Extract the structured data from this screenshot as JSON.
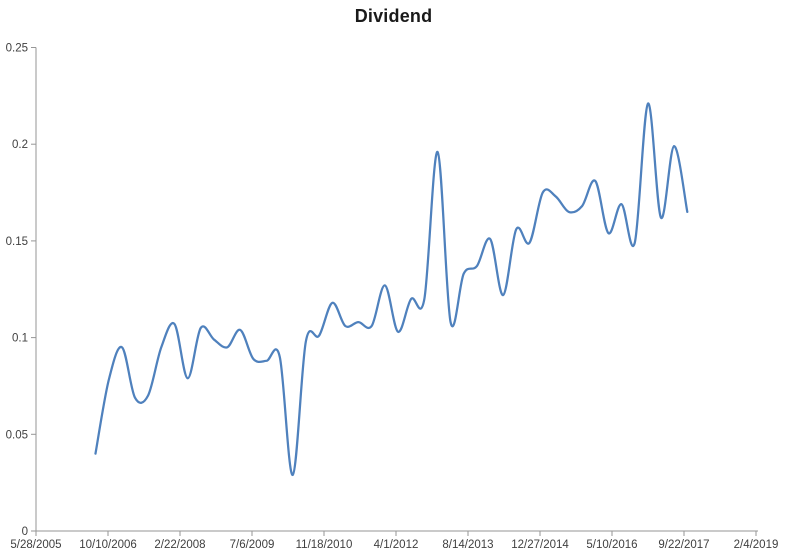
{
  "chart_data": {
    "type": "line",
    "title": "Dividend",
    "grid": false,
    "legend": "none",
    "colors": {
      "line": "#4F81BD",
      "axis": "#969696",
      "tick_label": "#404040",
      "title": "#1a1a1a",
      "background": "#ffffff"
    },
    "x_axis": {
      "type": "date",
      "min": "2005-05-28",
      "max": "2019-02-04",
      "major_unit_days": 500,
      "tick_labels": [
        "5/28/2005",
        "10/10/2006",
        "2/22/2008",
        "7/6/2009",
        "11/18/2010",
        "4/1/2012",
        "8/14/2013",
        "12/27/2014",
        "5/10/2016",
        "9/22/2017",
        "2/4/2019"
      ]
    },
    "y_axis": {
      "min": 0,
      "max": 0.25,
      "major_unit": 0.05,
      "tick_labels": [
        "0",
        "0.05",
        "0.1",
        "0.15",
        "0.2",
        "0.25"
      ]
    },
    "series": [
      {
        "name": "Dividend",
        "smooth": true,
        "points": [
          [
            "2006-07-15",
            0.04
          ],
          [
            "2006-10-15",
            0.078
          ],
          [
            "2007-01-15",
            0.095
          ],
          [
            "2007-04-15",
            0.069
          ],
          [
            "2007-07-15",
            0.07
          ],
          [
            "2007-10-15",
            0.095
          ],
          [
            "2008-01-15",
            0.107
          ],
          [
            "2008-04-15",
            0.079
          ],
          [
            "2008-07-15",
            0.105
          ],
          [
            "2008-10-15",
            0.099
          ],
          [
            "2009-01-15",
            0.095
          ],
          [
            "2009-04-15",
            0.104
          ],
          [
            "2009-07-15",
            0.089
          ],
          [
            "2009-10-15",
            0.088
          ],
          [
            "2010-01-15",
            0.09
          ],
          [
            "2010-04-15",
            0.029
          ],
          [
            "2010-07-15",
            0.098
          ],
          [
            "2010-10-15",
            0.101
          ],
          [
            "2011-01-15",
            0.118
          ],
          [
            "2011-04-15",
            0.106
          ],
          [
            "2011-07-15",
            0.108
          ],
          [
            "2011-10-15",
            0.106
          ],
          [
            "2012-01-15",
            0.127
          ],
          [
            "2012-04-15",
            0.103
          ],
          [
            "2012-07-15",
            0.12
          ],
          [
            "2012-10-15",
            0.12
          ],
          [
            "2013-01-15",
            0.196
          ],
          [
            "2013-04-15",
            0.108
          ],
          [
            "2013-07-15",
            0.133
          ],
          [
            "2013-10-15",
            0.137
          ],
          [
            "2014-01-15",
            0.151
          ],
          [
            "2014-04-15",
            0.122
          ],
          [
            "2014-07-15",
            0.156
          ],
          [
            "2014-10-15",
            0.149
          ],
          [
            "2015-01-15",
            0.175
          ],
          [
            "2015-04-15",
            0.173
          ],
          [
            "2015-07-15",
            0.165
          ],
          [
            "2015-10-15",
            0.168
          ],
          [
            "2016-01-15",
            0.181
          ],
          [
            "2016-04-15",
            0.154
          ],
          [
            "2016-07-15",
            0.169
          ],
          [
            "2016-10-15",
            0.149
          ],
          [
            "2017-01-15",
            0.221
          ],
          [
            "2017-04-15",
            0.162
          ],
          [
            "2017-07-15",
            0.199
          ],
          [
            "2017-10-15",
            0.165
          ]
        ]
      }
    ]
  }
}
